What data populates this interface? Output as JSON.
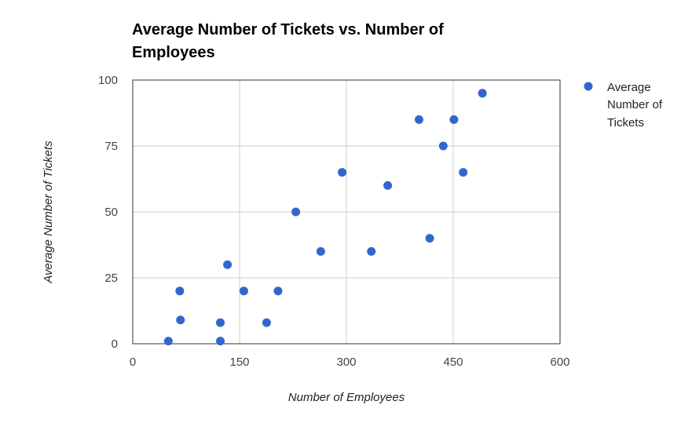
{
  "chart_data": {
    "type": "scatter",
    "title_lines": [
      "Average Number of Tickets vs. Number of",
      "Employees"
    ],
    "xlabel": "Number of Employees",
    "ylabel": "Average Number of Tickets",
    "xlim": [
      0,
      600
    ],
    "ylim": [
      0,
      100
    ],
    "x_ticks": [
      0,
      150,
      300,
      450,
      600
    ],
    "y_ticks": [
      0,
      25,
      50,
      75,
      100
    ],
    "x_tick_labels": [
      "0",
      "150",
      "300",
      "450",
      "600"
    ],
    "y_tick_labels": [
      "0",
      "25",
      "50",
      "75",
      "100"
    ],
    "grid": true,
    "legend_position": "right",
    "legend_lines": [
      "Average",
      "Number of",
      "Tickets"
    ],
    "series": [
      {
        "color": "#3366cc",
        "points": [
          [
            50,
            1
          ],
          [
            66,
            20
          ],
          [
            67,
            9
          ],
          [
            123,
            8
          ],
          [
            123,
            1
          ],
          [
            133,
            30
          ],
          [
            156,
            20
          ],
          [
            188,
            8
          ],
          [
            204,
            20
          ],
          [
            229,
            50
          ],
          [
            264,
            35
          ],
          [
            294,
            65
          ],
          [
            335,
            35
          ],
          [
            358,
            60
          ],
          [
            402,
            85
          ],
          [
            417,
            40
          ],
          [
            436,
            75
          ],
          [
            451,
            85
          ],
          [
            464,
            65
          ],
          [
            491,
            95
          ]
        ]
      }
    ]
  }
}
